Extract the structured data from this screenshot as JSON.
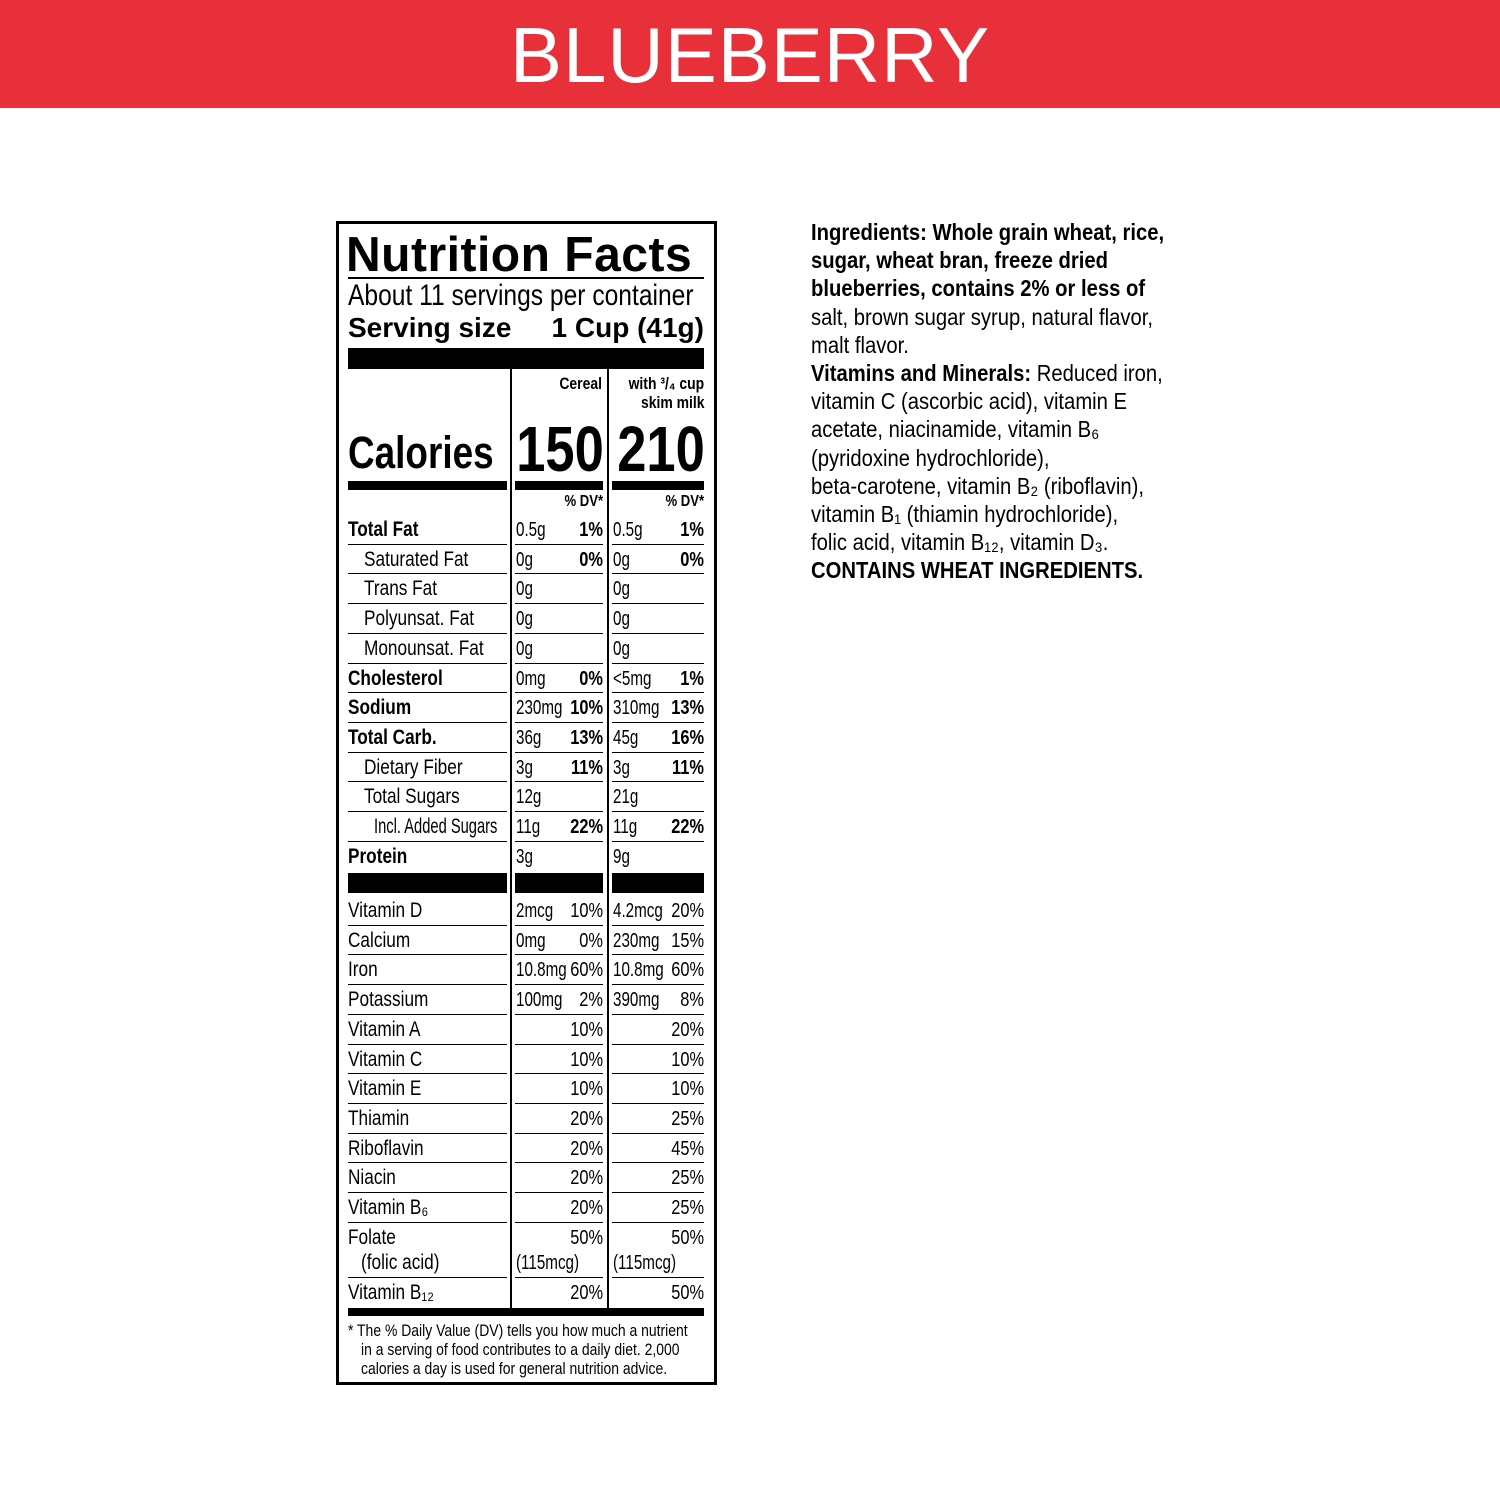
{
  "banner": {
    "title": "BLUEBERRY",
    "color": "#E8303A"
  },
  "label": {
    "title": "Nutrition Facts",
    "servings": "About 11 servings per container",
    "serving_size_label": "Serving size",
    "serving_size_value": "1 Cup (41g)",
    "col_cereal": "Cereal",
    "col_milk_line1": "with ³/₄ cup",
    "col_milk_line2": "skim milk",
    "calories_label": "Calories",
    "calories_cereal": "150",
    "calories_milk": "210",
    "dv_header": "% DV*",
    "nutrients": [
      {
        "label": "Total Fat",
        "bold": true,
        "indent": 0,
        "c_amt": "0.5g",
        "c_dv": "1%",
        "m_amt": "0.5g",
        "m_dv": "1%"
      },
      {
        "label": "Saturated Fat",
        "bold": false,
        "indent": 1,
        "c_amt": "0g",
        "c_dv": "0%",
        "m_amt": "0g",
        "m_dv": "0%"
      },
      {
        "label": "Trans Fat",
        "bold": false,
        "indent": 1,
        "c_amt": "0g",
        "c_dv": "",
        "m_amt": "0g",
        "m_dv": ""
      },
      {
        "label": "Polyunsat. Fat",
        "bold": false,
        "indent": 1,
        "c_amt": "0g",
        "c_dv": "",
        "m_amt": "0g",
        "m_dv": ""
      },
      {
        "label": "Monounsat. Fat",
        "bold": false,
        "indent": 1,
        "c_amt": "0g",
        "c_dv": "",
        "m_amt": "0g",
        "m_dv": ""
      },
      {
        "label": "Cholesterol",
        "bold": true,
        "indent": 0,
        "c_amt": "0mg",
        "c_dv": "0%",
        "m_amt": "<5mg",
        "m_dv": "1%"
      },
      {
        "label": "Sodium",
        "bold": true,
        "indent": 0,
        "c_amt": "230mg",
        "c_dv": "10%",
        "m_amt": "310mg",
        "m_dv": "13%"
      },
      {
        "label": "Total Carb.",
        "bold": true,
        "indent": 0,
        "c_amt": "36g",
        "c_dv": "13%",
        "m_amt": "45g",
        "m_dv": "16%"
      },
      {
        "label": "Dietary Fiber",
        "bold": false,
        "indent": 1,
        "c_amt": "3g",
        "c_dv": "11%",
        "m_amt": "3g",
        "m_dv": "11%"
      },
      {
        "label": "Total Sugars",
        "bold": false,
        "indent": 1,
        "c_amt": "12g",
        "c_dv": "",
        "m_amt": "21g",
        "m_dv": ""
      },
      {
        "label": "Incl. Added Sugars",
        "bold": false,
        "indent": 2,
        "c_amt": "11g",
        "c_dv": "22%",
        "m_amt": "11g",
        "m_dv": "22%"
      },
      {
        "label": "Protein",
        "bold": true,
        "indent": 0,
        "c_amt": "3g",
        "c_dv": "",
        "m_amt": "9g",
        "m_dv": ""
      }
    ],
    "vitamins": [
      {
        "label": "Vitamin D",
        "c_amt": "2mcg",
        "c_dv": "10%",
        "m_amt": "4.2mcg",
        "m_dv": "20%"
      },
      {
        "label": "Calcium",
        "c_amt": "0mg",
        "c_dv": "0%",
        "m_amt": "230mg",
        "m_dv": "15%"
      },
      {
        "label": "Iron",
        "c_amt": "10.8mg",
        "c_dv": "60%",
        "m_amt": "10.8mg",
        "m_dv": "60%"
      },
      {
        "label": "Potassium",
        "c_amt": "100mg",
        "c_dv": "2%",
        "m_amt": "390mg",
        "m_dv": "8%"
      },
      {
        "label": "Vitamin A",
        "c_amt": "",
        "c_dv": "10%",
        "m_amt": "",
        "m_dv": "20%"
      },
      {
        "label": "Vitamin C",
        "c_amt": "",
        "c_dv": "10%",
        "m_amt": "",
        "m_dv": "10%"
      },
      {
        "label": "Vitamin E",
        "c_amt": "",
        "c_dv": "10%",
        "m_amt": "",
        "m_dv": "10%"
      },
      {
        "label": "Thiamin",
        "c_amt": "",
        "c_dv": "20%",
        "m_amt": "",
        "m_dv": "25%"
      },
      {
        "label": "Riboflavin",
        "c_amt": "",
        "c_dv": "20%",
        "m_amt": "",
        "m_dv": "45%"
      },
      {
        "label": "Niacin",
        "c_amt": "",
        "c_dv": "20%",
        "m_amt": "",
        "m_dv": "25%"
      },
      {
        "label": "Vitamin B₆",
        "c_amt": "",
        "c_dv": "20%",
        "m_amt": "",
        "m_dv": "25%"
      },
      {
        "label": "Folate",
        "label2": "(folic acid)",
        "c_amt": "",
        "c_amt2": "(115mcg)",
        "c_dv": "50%",
        "m_amt": "",
        "m_amt2": "(115mcg)",
        "m_dv": "50%"
      },
      {
        "label": "Vitamin B₁₂",
        "c_amt": "",
        "c_dv": "20%",
        "m_amt": "",
        "m_dv": "50%"
      }
    ],
    "footnote": [
      "* The % Daily Value (DV) tells you how much a nutrient",
      "in a serving of food contributes to a daily diet. 2,000",
      "calories a day is used for general nutrition advice."
    ]
  },
  "ingredients": {
    "lines": [
      [
        {
          "b": true,
          "t": "Ingredients: Whole grain wheat, rice,"
        }
      ],
      [
        {
          "b": true,
          "t": "sugar, wheat bran, freeze dried"
        }
      ],
      [
        {
          "b": true,
          "t": "blueberries, contains 2% or less of"
        }
      ],
      [
        {
          "b": false,
          "t": "salt, brown sugar syrup, natural flavor,"
        }
      ],
      [
        {
          "b": false,
          "t": "malt flavor."
        }
      ],
      [
        {
          "b": true,
          "t": "Vitamins and Minerals: "
        },
        {
          "b": false,
          "t": "Reduced iron,"
        }
      ],
      [
        {
          "b": false,
          "t": "vitamin C (ascorbic acid), vitamin E"
        }
      ],
      [
        {
          "b": false,
          "t": "acetate, niacinamide, vitamin B₆"
        }
      ],
      [
        {
          "b": false,
          "t": "(pyridoxine hydrochloride),"
        }
      ],
      [
        {
          "b": false,
          "t": "beta-carotene, vitamin B₂ (riboflavin),"
        }
      ],
      [
        {
          "b": false,
          "t": "vitamin B₁ (thiamin hydrochloride),"
        }
      ],
      [
        {
          "b": false,
          "t": "folic acid, vitamin B₁₂, vitamin D₃."
        }
      ],
      [
        {
          "b": true,
          "t": "CONTAINS WHEAT INGREDIENTS."
        }
      ]
    ]
  }
}
